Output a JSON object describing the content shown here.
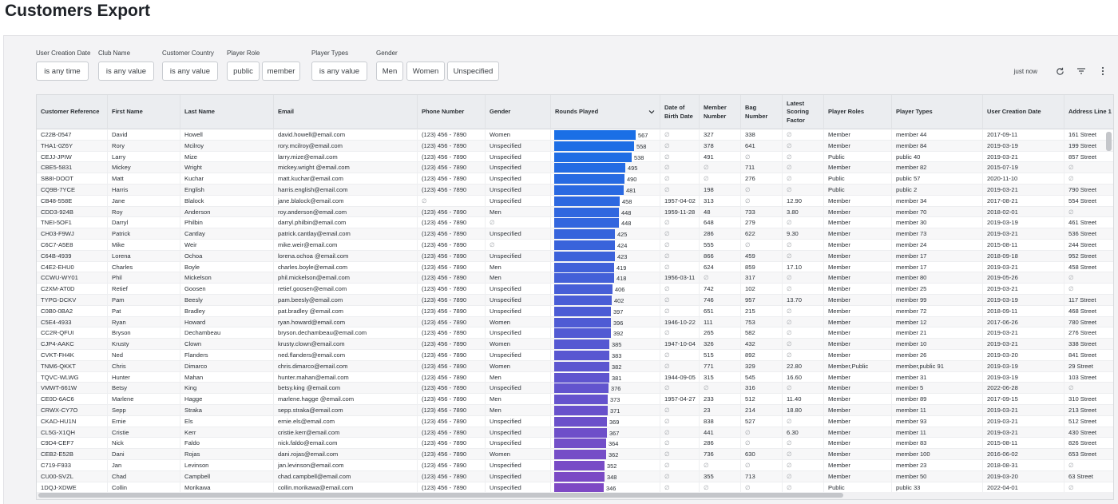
{
  "page_title": "Customers Export",
  "filters": [
    {
      "label": "User Creation Date",
      "values": [
        "is any time"
      ]
    },
    {
      "label": "Club Name",
      "values": [
        "is any value"
      ]
    },
    {
      "label": "Customer Country",
      "values": [
        "is any value"
      ]
    },
    {
      "label": "Player Role",
      "values": [
        "public",
        "member"
      ]
    },
    {
      "label": "Player Types",
      "values": [
        "is any value"
      ]
    },
    {
      "label": "Gender",
      "values": [
        "Men",
        "Women",
        "Unspecified"
      ]
    }
  ],
  "toolbar": {
    "updated": "just now",
    "refresh_icon": "refresh-icon",
    "filter_icon": "filter-lines-icon",
    "more_icon": "more-vertical-icon"
  },
  "table": {
    "columns": [
      "Customer Reference",
      "First Name",
      "Last Name",
      "Email",
      "Phone Number",
      "Gender",
      "Rounds Played",
      "Date of Birth Date",
      "Member Number",
      "Bag Number",
      "Latest Scoring Factor",
      "Player Roles",
      "Player Types",
      "User Creation Date",
      "Address Line 1"
    ],
    "sort_column": "Rounds Played",
    "sort_direction": "descending",
    "rounds_max": 567,
    "bar_colors": {
      "top": "#1a6fe6",
      "bottom": "#7e49c4"
    },
    "null_symbol": "∅",
    "rows": [
      [
        "C22B-0547",
        "David",
        "Howell",
        "david.howell@email.com",
        "(123) 456 - 7890",
        "Women",
        567,
        "∅",
        "327",
        "338",
        "∅",
        "Member",
        "member 44",
        "2017-09-11",
        "161 Street"
      ],
      [
        "THA1-0Z6Y",
        "Rory",
        "Mcilroy",
        "rory.mcilroy@email.com",
        "(123) 456 - 7890",
        "Unspecified",
        558,
        "∅",
        "378",
        "641",
        "∅",
        "Member",
        "member 84",
        "2019-03-19",
        "199 Street"
      ],
      [
        "CEJJ-JPIW",
        "Larry",
        "Mize",
        "larry.mize@email.com",
        "(123) 456 - 7890",
        "Unspecified",
        538,
        "∅",
        "491",
        "∅",
        "∅",
        "Public",
        "public 40",
        "2019-03-21",
        "857 Street"
      ],
      [
        "CBE5-5831",
        "Mickey",
        "Wright",
        "mickey.wright @email.com",
        "(123) 456 - 7890",
        "Unspecified",
        495,
        "∅",
        "∅",
        "711",
        "∅",
        "Member",
        "member 82",
        "2015-07-19",
        "∅"
      ],
      [
        "SB8I-DOOT",
        "Matt",
        "Kuchar",
        "matt.kuchar@email.com",
        "(123) 456 - 7890",
        "Unspecified",
        490,
        "∅",
        "∅",
        "276",
        "∅",
        "Public",
        "public 57",
        "2020-11-10",
        "∅"
      ],
      [
        "CQ9B-7YCE",
        "Harris",
        "English",
        "harris.english@email.com",
        "(123) 456 - 7890",
        "Unspecified",
        481,
        "∅",
        "198",
        "∅",
        "∅",
        "Public",
        "public 2",
        "2019-03-21",
        "790 Street"
      ],
      [
        "CB48-558E",
        "Jane",
        "Blalock",
        "jane.blalock@email.com",
        "∅",
        "Unspecified",
        458,
        "1957-04-02",
        "313",
        "∅",
        "12.90",
        "Member",
        "member 34",
        "2017-08-21",
        "554 Street"
      ],
      [
        "CDD3-924B",
        "Roy",
        "Anderson",
        "roy.anderson@email.com",
        "(123) 456 - 7890",
        "Men",
        448,
        "1959-11-28",
        "48",
        "733",
        "3.80",
        "Member",
        "member 70",
        "2018-02-01",
        "∅"
      ],
      [
        "TNEI-5OF1",
        "Darryl",
        "Philbin",
        "darryl.philbin@email.com",
        "(123) 456 - 7890",
        "∅",
        448,
        "∅",
        "648",
        "279",
        "∅",
        "Member",
        "member 30",
        "2019-03-19",
        "461 Street"
      ],
      [
        "CH03-F9WJ",
        "Patrick",
        "Cantlay",
        "patrick.cantlay@email.com",
        "(123) 456 - 7890",
        "Unspecified",
        425,
        "∅",
        "286",
        "622",
        "9.30",
        "Member",
        "member 73",
        "2019-03-21",
        "536 Street"
      ],
      [
        "C6C7-A5E8",
        "Mike",
        "Weir",
        "mike.weir@email.com",
        "(123) 456 - 7890",
        "∅",
        424,
        "∅",
        "555",
        "∅",
        "∅",
        "Member",
        "member 24",
        "2015-08-11",
        "244 Street"
      ],
      [
        "C64B-4939",
        "Lorena",
        "Ochoa",
        "lorena.ochoa @email.com",
        "(123) 456 - 7890",
        "Unspecified",
        423,
        "∅",
        "866",
        "459",
        "∅",
        "Member",
        "member 17",
        "2018-09-18",
        "952 Street"
      ],
      [
        "C4E2-EHU0",
        "Charles",
        "Boyle",
        "charles.boyle@email.com",
        "(123) 456 - 7890",
        "Men",
        419,
        "∅",
        "624",
        "859",
        "17.10",
        "Member",
        "member 17",
        "2019-03-21",
        "458 Street"
      ],
      [
        "CCWU-WY01",
        "Phil",
        "Mickelson",
        "phil.mickelson@email.com",
        "(123) 456 - 7890",
        "Men",
        418,
        "1956-03-11",
        "∅",
        "317",
        "∅",
        "Member",
        "member 80",
        "2019-05-26",
        "∅"
      ],
      [
        "C2XM-AT0D",
        "Retief",
        "Goosen",
        "retief.goosen@email.com",
        "(123) 456 - 7890",
        "Unspecified",
        406,
        "∅",
        "742",
        "102",
        "∅",
        "Member",
        "member 25",
        "2019-03-21",
        "∅"
      ],
      [
        "TYPG-DCKV",
        "Pam",
        "Beesly",
        "pam.beesly@email.com",
        "(123) 456 - 7890",
        "Unspecified",
        402,
        "∅",
        "746",
        "957",
        "13.70",
        "Member",
        "member 99",
        "2019-03-19",
        "117 Street"
      ],
      [
        "C0B0-0BA2",
        "Pat",
        "Bradley",
        "pat.bradley @email.com",
        "(123) 456 - 7890",
        "Unspecified",
        397,
        "∅",
        "651",
        "215",
        "∅",
        "Member",
        "member 72",
        "2018-09-11",
        "468 Street"
      ],
      [
        "C5E4-4933",
        "Ryan",
        "Howard",
        "ryan.howard@email.com",
        "(123) 456 - 7890",
        "Women",
        396,
        "1946-10-22",
        "111",
        "753",
        "∅",
        "Member",
        "member 12",
        "2017-06-26",
        "780 Street"
      ],
      [
        "CC2R-QFUI",
        "Bryson",
        "Dechambeau",
        "bryson.dechambeau@email.com",
        "(123) 456 - 7890",
        "Unspecified",
        392,
        "∅",
        "265",
        "582",
        "∅",
        "Member",
        "member 21",
        "2019-03-21",
        "276 Street"
      ],
      [
        "CJP4-AAKC",
        "Krusty",
        "Clown",
        "krusty.clown@email.com",
        "(123) 456 - 7890",
        "Women",
        385,
        "1947-10-04",
        "326",
        "432",
        "∅",
        "Member",
        "member 10",
        "2019-03-21",
        "338 Street"
      ],
      [
        "CVKT-FH4K",
        "Ned",
        "Flanders",
        "ned.flanders@email.com",
        "(123) 456 - 7890",
        "Unspecified",
        383,
        "∅",
        "515",
        "892",
        "∅",
        "Member",
        "member 26",
        "2019-03-20",
        "841 Street"
      ],
      [
        "TNM6-QKKT",
        "Chris",
        "Dimarco",
        "chris.dimarco@email.com",
        "(123) 456 - 7890",
        "Women",
        382,
        "∅",
        "771",
        "329",
        "22.80",
        "Member,Public",
        "member,public 91",
        "2019-03-19",
        "29 Street"
      ],
      [
        "TQVC-WLWG",
        "Hunter",
        "Mahan",
        "hunter.mahan@email.com",
        "(123) 456 - 7890",
        "Men",
        381,
        "1944-09-05",
        "315",
        "545",
        "16.60",
        "Member",
        "member 31",
        "2019-03-19",
        "103 Street"
      ],
      [
        "VMWT-661W",
        "Betsy",
        "King",
        "betsy.king @email.com",
        "(123) 456 - 7890",
        "Unspecified",
        376,
        "∅",
        "∅",
        "316",
        "∅",
        "Member",
        "member 5",
        "2022-06-28",
        "∅"
      ],
      [
        "CE0D-6AC6",
        "Marlene",
        "Hagge",
        "marlene.hagge @email.com",
        "(123) 456 - 7890",
        "Men",
        373,
        "1957-04-27",
        "233",
        "512",
        "11.40",
        "Member",
        "member 89",
        "2017-09-15",
        "310 Street"
      ],
      [
        "CRWX-CY7O",
        "Sepp",
        "Straka",
        "sepp.straka@email.com",
        "(123) 456 - 7890",
        "Men",
        371,
        "∅",
        "23",
        "214",
        "18.80",
        "Member",
        "member 11",
        "2019-03-21",
        "213 Street"
      ],
      [
        "CKAD-HU1N",
        "Ernie",
        "Els",
        "ernie.els@email.com",
        "(123) 456 - 7890",
        "Unspecified",
        369,
        "∅",
        "838",
        "527",
        "∅",
        "Member",
        "member 93",
        "2019-03-21",
        "512 Street"
      ],
      [
        "CL5G-X1QH",
        "Cristie",
        "Kerr",
        "cristie.kerr@email.com",
        "(123) 456 - 7890",
        "Unspecified",
        367,
        "∅",
        "441",
        "∅",
        "6.30",
        "Member",
        "member 11",
        "2019-03-21",
        "430 Street"
      ],
      [
        "C9D4-CEF7",
        "Nick",
        "Faldo",
        "nick.faldo@email.com",
        "(123) 456 - 7890",
        "Unspecified",
        364,
        "∅",
        "286",
        "∅",
        "∅",
        "Member",
        "member 83",
        "2015-08-11",
        "826 Street"
      ],
      [
        "CEB2-E52B",
        "Dani",
        "Rojas",
        "dani.rojas@email.com",
        "(123) 456 - 7890",
        "Women",
        362,
        "∅",
        "736",
        "630",
        "∅",
        "Member",
        "member 100",
        "2016-06-02",
        "653 Street"
      ],
      [
        "C719-F933",
        "Jan",
        "Levinson",
        "jan.levinson@email.com",
        "(123) 456 - 7890",
        "Unspecified",
        352,
        "∅",
        "∅",
        "∅",
        "∅",
        "Member",
        "member 23",
        "2018-08-31",
        "∅"
      ],
      [
        "CU00-SVZL",
        "Chad",
        "Campbell",
        "chad.campbell@email.com",
        "(123) 456 - 7890",
        "Unspecified",
        348,
        "∅",
        "355",
        "713",
        "∅",
        "Member",
        "member 50",
        "2019-03-20",
        "63 Street"
      ],
      [
        "1DQJ-XDWE",
        "Collin",
        "Morikawa",
        "collin.morikawa@email.com",
        "(123) 456 - 7890",
        "Unspecified",
        346,
        "∅",
        "∅",
        "∅",
        "∅",
        "Public",
        "public 33",
        "2022-04-01",
        "∅"
      ]
    ]
  }
}
